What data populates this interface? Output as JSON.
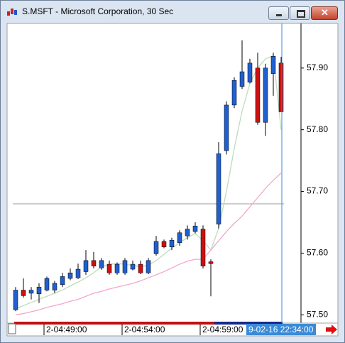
{
  "window": {
    "title": "S.MSFT - Microsoft Corporation, 30 Sec"
  },
  "chart_data": {
    "type": "candlestick",
    "categories": [
      null,
      null,
      null,
      null,
      "2-04:49:00",
      null,
      null,
      null,
      null,
      null,
      null,
      null,
      null,
      null,
      "2-04:54:00",
      null,
      null,
      null,
      null,
      null,
      null,
      null,
      null,
      null,
      "2-04:59:00",
      null,
      null,
      null,
      null,
      null,
      null,
      null,
      null,
      null,
      null
    ],
    "open": [
      57.508,
      57.54,
      57.535,
      57.534,
      57.54,
      57.54,
      57.549,
      57.559,
      57.56,
      57.57,
      57.588,
      57.576,
      57.582,
      57.568,
      57.568,
      57.574,
      57.582,
      57.568,
      57.599,
      57.619,
      57.61,
      57.617,
      57.628,
      57.635,
      57.639,
      57.586,
      57.647,
      57.766,
      57.84,
      57.87,
      57.877,
      57.9,
      57.812,
      57.891,
      57.908
    ],
    "high": [
      57.545,
      57.559,
      57.545,
      57.551,
      57.562,
      57.555,
      57.568,
      57.575,
      57.583,
      57.605,
      57.602,
      57.592,
      57.588,
      57.585,
      57.592,
      57.588,
      57.588,
      57.592,
      57.628,
      57.622,
      57.625,
      57.637,
      57.645,
      57.65,
      57.645,
      57.59,
      57.78,
      57.846,
      57.885,
      57.945,
      57.915,
      57.925,
      57.907,
      57.925,
      57.918
    ],
    "low": [
      57.506,
      57.528,
      57.525,
      57.519,
      57.538,
      57.535,
      57.545,
      57.556,
      57.558,
      57.565,
      57.575,
      57.573,
      57.565,
      57.565,
      57.565,
      57.572,
      57.566,
      57.566,
      57.596,
      57.608,
      57.605,
      57.612,
      57.622,
      57.632,
      57.575,
      57.53,
      57.64,
      57.76,
      57.835,
      57.866,
      57.875,
      57.808,
      57.79,
      57.855,
      57.83
    ],
    "close": [
      57.54,
      57.531,
      57.54,
      57.545,
      57.559,
      57.551,
      57.562,
      57.568,
      57.574,
      57.588,
      57.579,
      57.588,
      57.568,
      57.582,
      57.588,
      57.582,
      57.568,
      57.588,
      57.619,
      57.61,
      57.621,
      57.633,
      57.639,
      57.644,
      57.579,
      57.583,
      57.761,
      57.84,
      57.88,
      57.894,
      57.908,
      57.812,
      57.9,
      57.919,
      57.829
    ],
    "up_color": "#1f5fd0",
    "down_color": "#cc1111",
    "series": [
      {
        "color": "#bcdcbc",
        "values": [
          57.51,
          57.515,
          57.52,
          57.525,
          57.53,
          57.535,
          57.54,
          57.547,
          57.553,
          57.56,
          57.568,
          57.578,
          57.582,
          57.583,
          57.582,
          57.58,
          57.578,
          57.58,
          57.588,
          57.598,
          57.608,
          57.617,
          57.625,
          57.632,
          57.62,
          57.605,
          57.64,
          57.7,
          57.77,
          57.83,
          57.875,
          57.9,
          57.915,
          57.92,
          57.8
        ]
      },
      {
        "color": "#f4a6cc",
        "values": [
          57.5,
          57.502,
          57.505,
          57.508,
          57.512,
          57.515,
          57.518,
          57.522,
          57.525,
          57.53,
          57.535,
          57.538,
          57.542,
          57.545,
          57.548,
          57.551,
          57.555,
          57.56,
          57.565,
          57.57,
          57.576,
          57.582,
          57.587,
          57.59,
          57.59,
          57.605,
          57.62,
          57.635,
          57.648,
          57.66,
          57.675,
          57.69,
          57.705,
          57.718,
          57.73
        ]
      }
    ],
    "hline": 57.68,
    "cursor_label": "9-02-16 22:34:00",
    "ylim": [
      57.49,
      57.97
    ],
    "yticks": [
      {
        "value": 57.5,
        "label": "57.50"
      },
      {
        "value": 57.6,
        "label": "57.60"
      },
      {
        "value": 57.7,
        "label": "57.70"
      },
      {
        "value": 57.8,
        "label": "57.80"
      },
      {
        "value": 57.9,
        "label": "57.90"
      }
    ]
  }
}
